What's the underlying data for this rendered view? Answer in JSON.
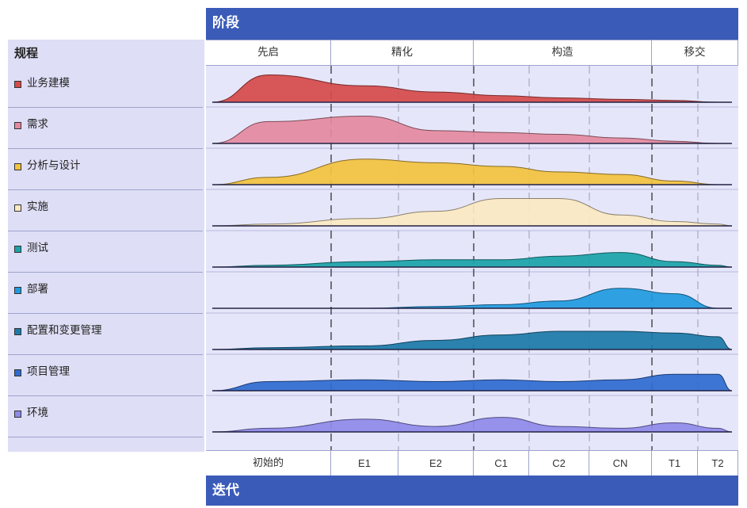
{
  "top_bar": {
    "label": "阶段"
  },
  "bottom_bar": {
    "label": "迭代"
  },
  "disciplines_header": "规程",
  "disciplines": [
    {
      "label": "业务建模",
      "color": "#d64a4a"
    },
    {
      "label": "需求",
      "color": "#e48aa0"
    },
    {
      "label": "分析与设计",
      "color": "#f3c23e"
    },
    {
      "label": "实施",
      "color": "#fbe9c2"
    },
    {
      "label": "测试",
      "color": "#1aa3a8"
    },
    {
      "label": "部署",
      "color": "#1f9be0"
    },
    {
      "label": "配置和变更管理",
      "color": "#1b7aa8"
    },
    {
      "label": "项目管理",
      "color": "#2f6bd0"
    },
    {
      "label": "环境",
      "color": "#8f8ae8"
    }
  ],
  "phases": [
    {
      "label": "先启",
      "start": 0,
      "end": 1
    },
    {
      "label": "精化",
      "start": 1,
      "end": 3
    },
    {
      "label": "构造",
      "start": 3,
      "end": 6
    },
    {
      "label": "移交",
      "start": 6,
      "end": 8
    }
  ],
  "iterations": [
    "初始的",
    "E1",
    "E2",
    "C1",
    "C2",
    "CN",
    "T1",
    "T2"
  ],
  "chart_data": {
    "type": "area",
    "categories": [
      "初始的",
      "E1",
      "E2",
      "C1",
      "C2",
      "CN",
      "T1",
      "T2"
    ],
    "series": [
      {
        "name": "业务建模",
        "values": [
          0.75,
          0.45,
          0.28,
          0.18,
          0.12,
          0.08,
          0.05,
          0.0
        ]
      },
      {
        "name": "需求",
        "values": [
          0.6,
          0.75,
          0.35,
          0.3,
          0.25,
          0.15,
          0.06,
          0.0
        ]
      },
      {
        "name": "分析与设计",
        "values": [
          0.2,
          0.7,
          0.6,
          0.5,
          0.35,
          0.28,
          0.1,
          0.0
        ]
      },
      {
        "name": "实施",
        "values": [
          0.05,
          0.2,
          0.4,
          0.75,
          0.75,
          0.3,
          0.12,
          0.05
        ]
      },
      {
        "name": "测试",
        "values": [
          0.05,
          0.15,
          0.2,
          0.2,
          0.3,
          0.4,
          0.15,
          0.05
        ]
      },
      {
        "name": "部署",
        "values": [
          0.0,
          0.0,
          0.05,
          0.1,
          0.2,
          0.55,
          0.4,
          0.0
        ]
      },
      {
        "name": "配置和变更管理",
        "values": [
          0.05,
          0.1,
          0.25,
          0.4,
          0.5,
          0.5,
          0.45,
          0.35
        ]
      },
      {
        "name": "项目管理",
        "values": [
          0.25,
          0.3,
          0.25,
          0.3,
          0.25,
          0.3,
          0.45,
          0.45
        ]
      },
      {
        "name": "环境",
        "values": [
          0.1,
          0.35,
          0.15,
          0.4,
          0.15,
          0.1,
          0.25,
          0.1
        ]
      }
    ]
  }
}
